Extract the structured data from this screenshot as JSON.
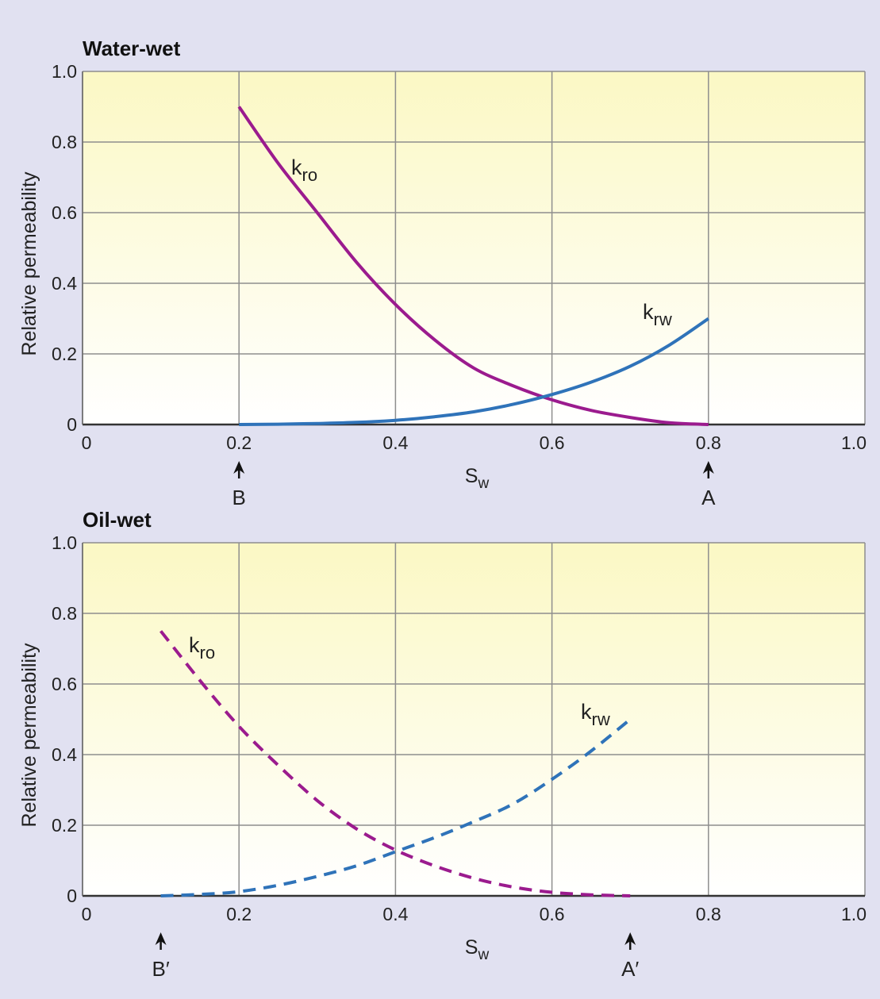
{
  "colors": {
    "background": "#e1e1f1",
    "plot_top": "#fbf8c4",
    "plot_bottom": "#ffffff",
    "grid": "#8e8e8e",
    "kro": "#9b1b8e",
    "krw": "#2f73b9"
  },
  "chart_data": [
    {
      "type": "line",
      "title": "Water-wet",
      "xlabel": "S",
      "xlabel_sub": "w",
      "ylabel": "Relative permeability",
      "xlim": [
        0,
        1.0
      ],
      "ylim": [
        0,
        1.0
      ],
      "grid": true,
      "line_style": "solid",
      "x_ticks": [
        "0",
        "0.2",
        "0.4",
        "0.6",
        "0.8",
        "1.0"
      ],
      "y_ticks": [
        "0",
        "0.2",
        "0.4",
        "0.6",
        "0.8",
        "1.0"
      ],
      "series": [
        {
          "name": "k",
          "name_sub": "ro",
          "color": "#9b1b8e",
          "x": [
            0.2,
            0.25,
            0.3,
            0.35,
            0.4,
            0.45,
            0.5,
            0.55,
            0.6,
            0.65,
            0.7,
            0.75,
            0.8
          ],
          "y": [
            0.9,
            0.74,
            0.6,
            0.46,
            0.34,
            0.24,
            0.16,
            0.11,
            0.07,
            0.04,
            0.02,
            0.005,
            0.0
          ]
        },
        {
          "name": "k",
          "name_sub": "rw",
          "color": "#2f73b9",
          "x": [
            0.2,
            0.25,
            0.3,
            0.35,
            0.4,
            0.45,
            0.5,
            0.55,
            0.6,
            0.65,
            0.7,
            0.75,
            0.8
          ],
          "y": [
            0.0,
            0.001,
            0.003,
            0.006,
            0.012,
            0.022,
            0.036,
            0.057,
            0.085,
            0.12,
            0.165,
            0.225,
            0.3
          ]
        }
      ],
      "markers": [
        {
          "label": "B",
          "x": 0.2
        },
        {
          "label": "A",
          "x": 0.8
        }
      ]
    },
    {
      "type": "line",
      "title": "Oil-wet",
      "xlabel": "S",
      "xlabel_sub": "w",
      "ylabel": "Relative permeability",
      "xlim": [
        0,
        1.0
      ],
      "ylim": [
        0,
        1.0
      ],
      "grid": true,
      "line_style": "dashed",
      "x_ticks": [
        "0",
        "0.2",
        "0.4",
        "0.6",
        "0.8",
        "1.0"
      ],
      "y_ticks": [
        "0",
        "0.2",
        "0.4",
        "0.6",
        "0.8",
        "1.0"
      ],
      "series": [
        {
          "name": "k",
          "name_sub": "ro",
          "color": "#9b1b8e",
          "x": [
            0.1,
            0.15,
            0.2,
            0.25,
            0.3,
            0.35,
            0.4,
            0.45,
            0.5,
            0.55,
            0.6,
            0.65,
            0.7
          ],
          "y": [
            0.75,
            0.61,
            0.48,
            0.37,
            0.27,
            0.19,
            0.13,
            0.085,
            0.05,
            0.025,
            0.01,
            0.003,
            0.0
          ]
        },
        {
          "name": "k",
          "name_sub": "rw",
          "color": "#2f73b9",
          "x": [
            0.1,
            0.15,
            0.2,
            0.25,
            0.3,
            0.35,
            0.4,
            0.45,
            0.5,
            0.55,
            0.6,
            0.65,
            0.7
          ],
          "y": [
            0.0,
            0.004,
            0.012,
            0.03,
            0.055,
            0.085,
            0.125,
            0.165,
            0.21,
            0.26,
            0.33,
            0.41,
            0.5
          ]
        }
      ],
      "markers": [
        {
          "label": "B′",
          "x": 0.1
        },
        {
          "label": "A′",
          "x": 0.7
        }
      ]
    }
  ]
}
